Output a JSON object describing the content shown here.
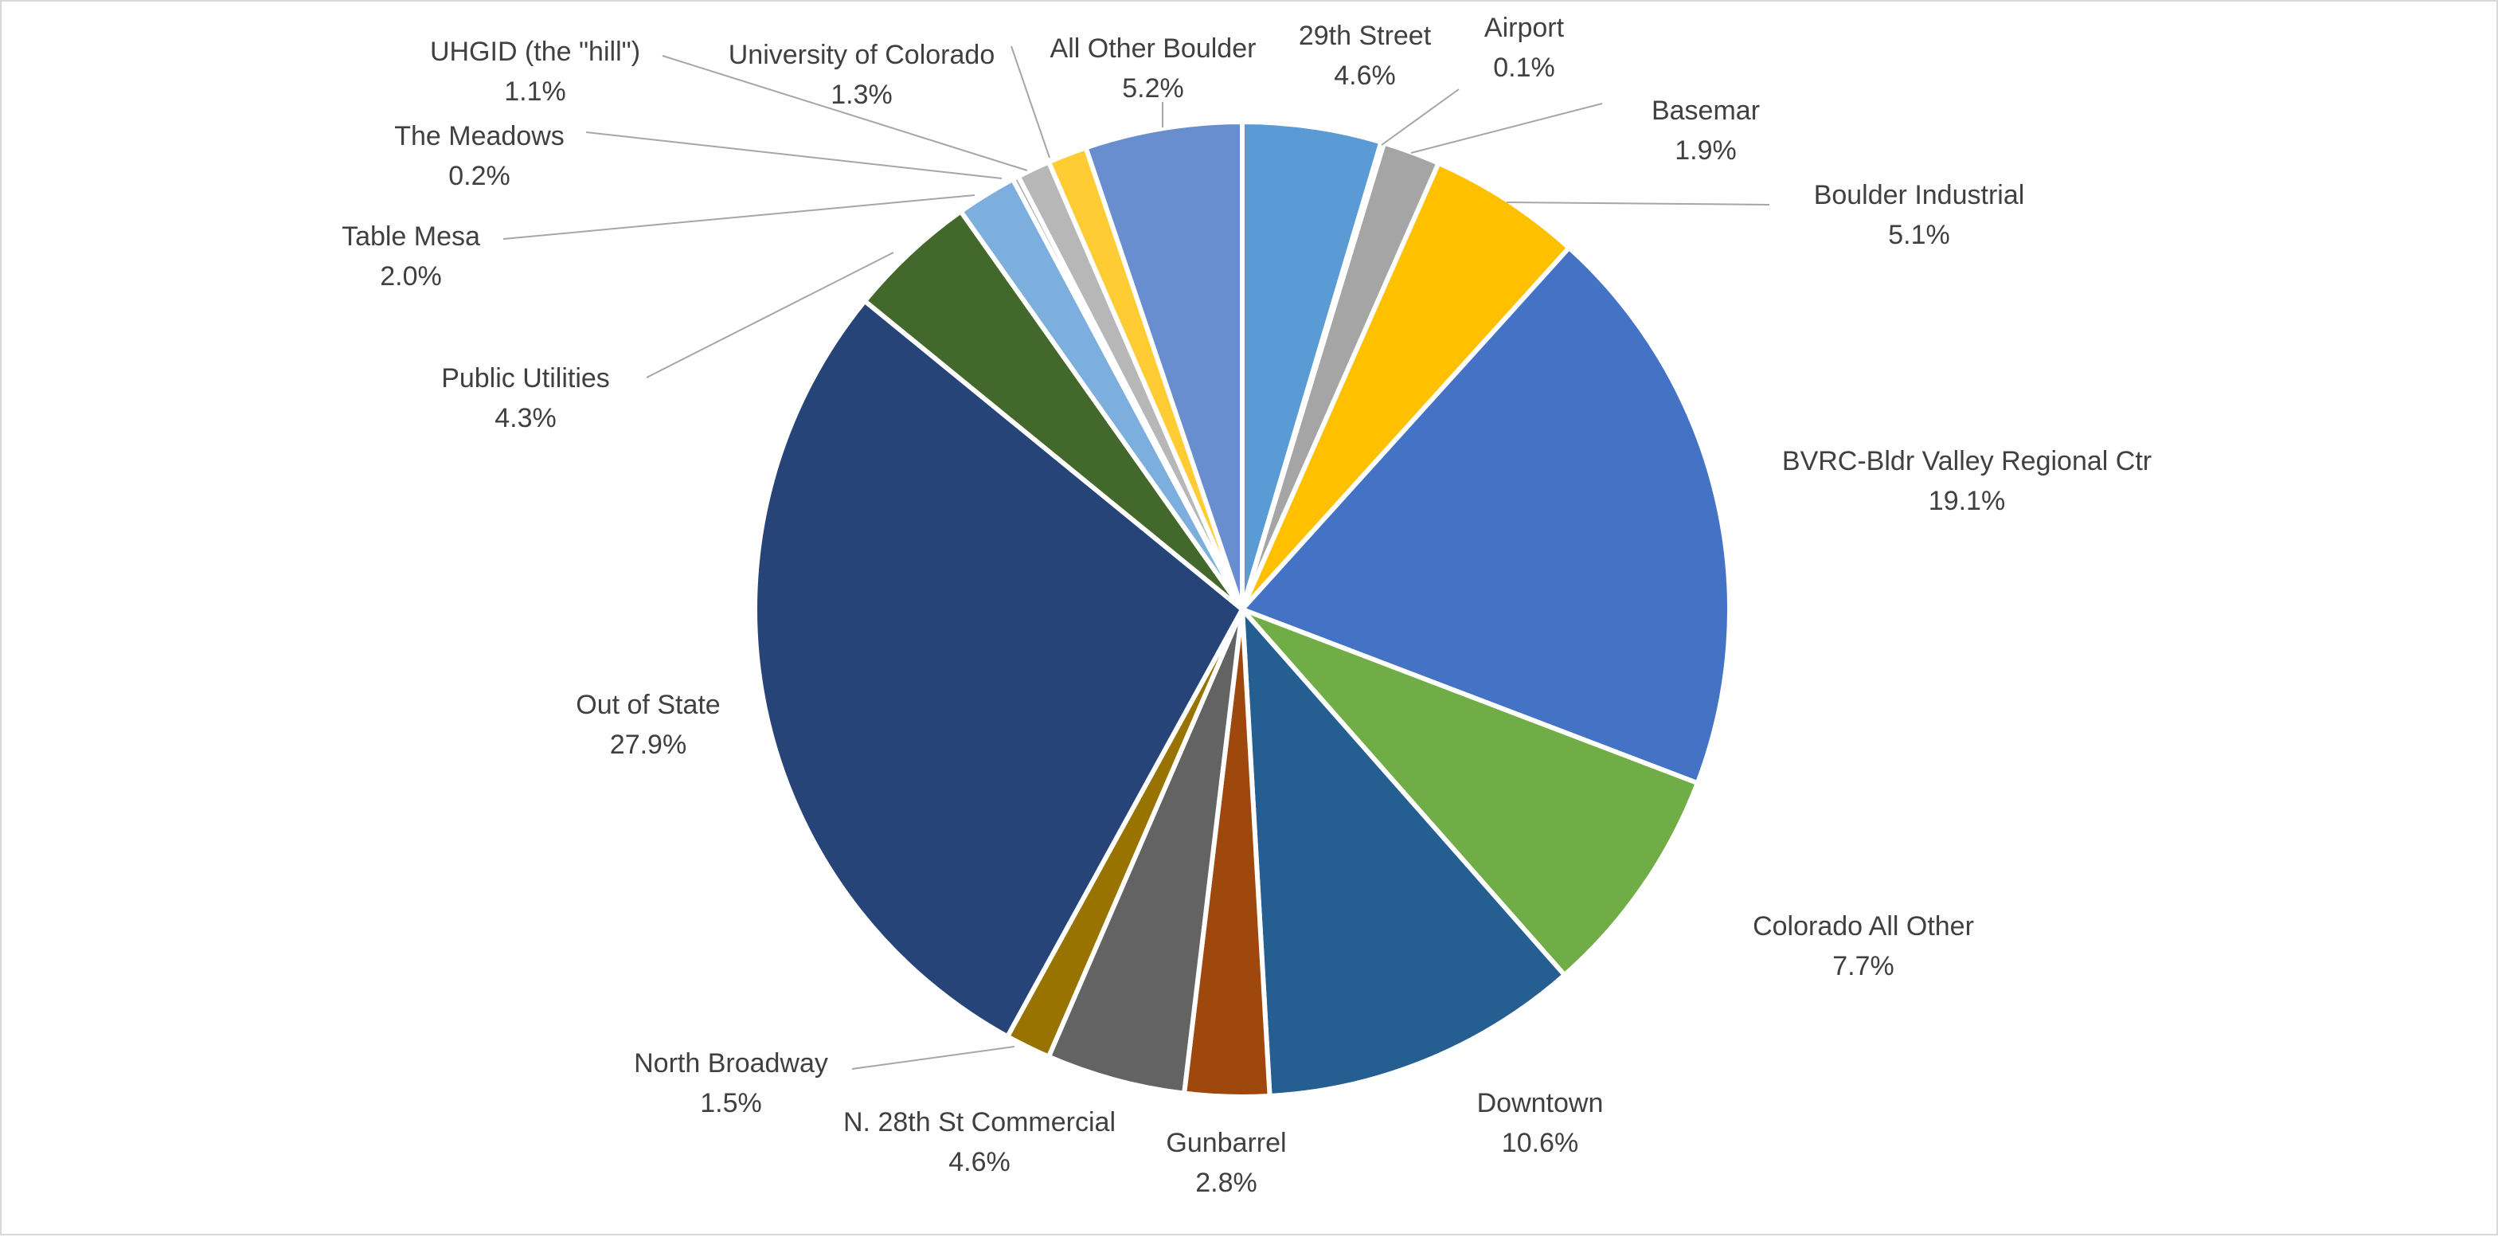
{
  "chart_data": {
    "type": "pie",
    "start_angle_deg": 0,
    "direction": "clockwise",
    "slices": [
      {
        "label": "29th Street",
        "value_label": "4.6%",
        "value": 4.6,
        "color": "#5B9BD5"
      },
      {
        "label": "Airport",
        "value_label": "0.1%",
        "value": 0.1,
        "color": "#A5A5A5"
      },
      {
        "label": "Basemar",
        "value_label": "1.9%",
        "value": 1.9,
        "color": "#A5A5A5"
      },
      {
        "label": "Boulder Industrial",
        "value_label": "5.1%",
        "value": 5.1,
        "color": "#FFC000"
      },
      {
        "label": "BVRC-Bldr Valley Regional Ctr",
        "value_label": "19.1%",
        "value": 19.1,
        "color": "#4472C4"
      },
      {
        "label": "Colorado All Other",
        "value_label": "7.7%",
        "value": 7.7,
        "color": "#70AD47"
      },
      {
        "label": "Downtown",
        "value_label": "10.6%",
        "value": 10.6,
        "color": "#255E91"
      },
      {
        "label": "Gunbarrel",
        "value_label": "2.8%",
        "value": 2.8,
        "color": "#9E480E"
      },
      {
        "label": "N. 28th St Commercial",
        "value_label": "4.6%",
        "value": 4.6,
        "color": "#636363"
      },
      {
        "label": "North Broadway",
        "value_label": "1.5%",
        "value": 1.5,
        "color": "#997300"
      },
      {
        "label": "Out of State",
        "value_label": "27.9%",
        "value": 27.9,
        "color": "#264478"
      },
      {
        "label": "Public Utilities",
        "value_label": "4.3%",
        "value": 4.3,
        "color": "#43682B"
      },
      {
        "label": "Table Mesa",
        "value_label": "2.0%",
        "value": 2.0,
        "color": "#7CAFDD"
      },
      {
        "label": "The Meadows",
        "value_label": "0.2%",
        "value": 0.2,
        "color": "#A5A5A5"
      },
      {
        "label": "UHGID (the \"hill\")",
        "value_label": "1.1%",
        "value": 1.1,
        "color": "#B7B7B7"
      },
      {
        "label": "University of Colorado",
        "value_label": "1.3%",
        "value": 1.3,
        "color": "#FFCD33"
      },
      {
        "label": "All Other Boulder",
        "value_label": "5.2%",
        "value": 5.2,
        "color": "#698ED0"
      }
    ],
    "legend": "none",
    "data_labels": "outside with leader lines"
  }
}
